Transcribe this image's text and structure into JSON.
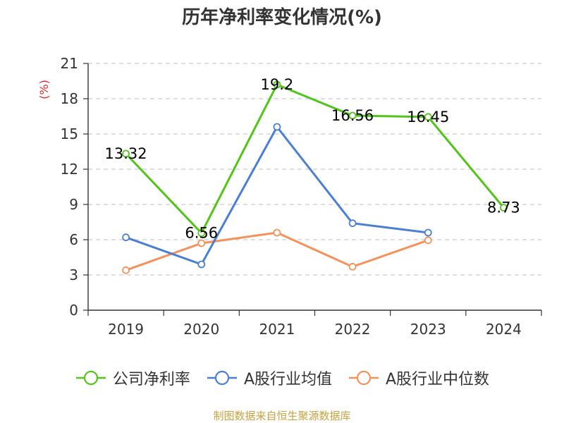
{
  "title": "历年净利率变化情况(%)",
  "source": "制图数据来自恒生聚源数据库",
  "colors": {
    "axis": "#333333",
    "grid": "#cccccc",
    "tick_text": "#333333",
    "unit_text": "#e0292b",
    "data_label": "#000000",
    "source_text": "#c8a240"
  },
  "chart_data": {
    "type": "line",
    "title": "历年净利率变化情况(%)",
    "ylabel": "(%)",
    "xlabel": "",
    "categories": [
      "2019",
      "2020",
      "2021",
      "2022",
      "2023",
      "2024"
    ],
    "ylim": [
      0,
      21
    ],
    "yticks": [
      0,
      3,
      6,
      9,
      12,
      15,
      18,
      21
    ],
    "grid": true,
    "legend_position": "bottom",
    "series": [
      {
        "name": "公司净利率",
        "color": "#52c41a",
        "values": [
          13.32,
          6.56,
          19.2,
          16.56,
          16.45,
          8.73
        ],
        "labels": [
          "13.32",
          "6.56",
          "19.2",
          "16.56",
          "16.45",
          "8.73"
        ]
      },
      {
        "name": "A股行业均值",
        "color": "#4a7fd4",
        "values": [
          6.2,
          3.9,
          15.6,
          7.4,
          6.6,
          null
        ],
        "labels": null
      },
      {
        "name": "A股行业中位数",
        "color": "#f5915a",
        "values": [
          3.4,
          5.7,
          6.6,
          3.7,
          5.95,
          null
        ],
        "labels": null
      }
    ]
  }
}
